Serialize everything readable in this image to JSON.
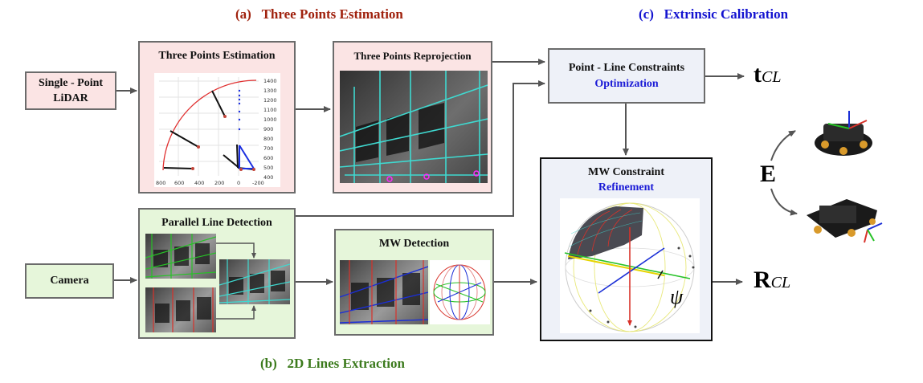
{
  "sections": {
    "a": {
      "letter": "(a)",
      "title": "Three Points Estimation",
      "color": "#a0220e"
    },
    "b": {
      "letter": "(b)",
      "title": "2D Lines Extraction",
      "color": "#3b7a1c"
    },
    "c": {
      "letter": "(c)",
      "title": "Extrinsic Calibration",
      "color": "#1414d0"
    }
  },
  "inputs": {
    "lidar_line1": "Single - Point",
    "lidar_line2": "LiDAR",
    "camera": "Camera"
  },
  "boxes": {
    "three_points_estimation": "Three Points Estimation",
    "three_points_reprojection": "Three Points Reprojection",
    "parallel_line_detection": "Parallel Line Detection",
    "mw_detection": "MW Detection",
    "plc_title": "Point - Line Constraints",
    "plc_sub": "Optimization",
    "mwc_title": "MW Constraint",
    "mwc_sub": "Refinement"
  },
  "outputs": {
    "t_main": "t",
    "t_sub": "CL",
    "r_main": "R",
    "r_sub": "CL",
    "e": "E",
    "psi": "ψ"
  },
  "chart_axes": {
    "y_ticks": [
      "1400",
      "1300",
      "1200",
      "1100",
      "1000",
      "900",
      "800",
      "700",
      "600",
      "500",
      "400"
    ],
    "x_ticks": [
      "800",
      "600",
      "400",
      "200",
      "0",
      "-200"
    ]
  },
  "colors": {
    "arrow": "#555555",
    "cyan_line": "#3fd9d0",
    "red_line": "#d8322a",
    "blue_line": "#1b2fd6",
    "green_line": "#27c227"
  }
}
